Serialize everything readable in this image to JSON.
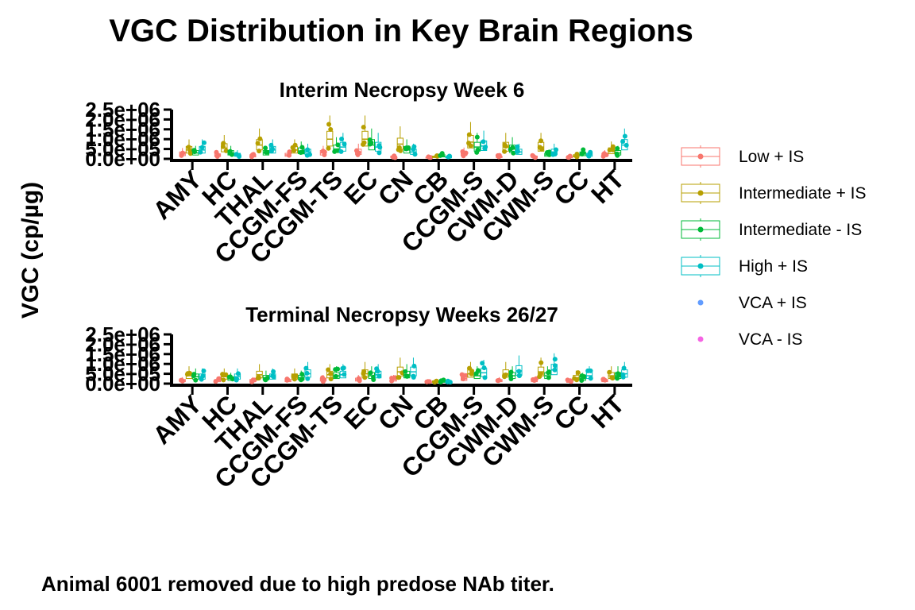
{
  "chart_data": {
    "type": "boxplot",
    "title": "VGC Distribution in Key Brain Regions",
    "ylabel": "VGC (cp/µg)",
    "caption": "Animal 6001 removed due to high predose NAb titer.",
    "ylim": [
      0,
      2500000
    ],
    "yticks": [
      "0.0e+00",
      "5.0e+05",
      "1.0e+06",
      "1.5e+06",
      "2.0e+06",
      "2.5e+06"
    ],
    "categories": [
      "AMY",
      "HC",
      "THAL",
      "CCGM-FS",
      "CCGM-TS",
      "EC",
      "CN",
      "CB",
      "CCGM-S",
      "CWM-D",
      "CWM-S",
      "CC",
      "HT"
    ],
    "legend": {
      "position": "right",
      "entries": [
        {
          "name": "Low + IS",
          "color": "#F8766D",
          "kind": "box"
        },
        {
          "name": "Intermediate + IS",
          "color": "#B79F00",
          "kind": "box"
        },
        {
          "name": "Intermediate - IS",
          "color": "#00BA38",
          "kind": "box"
        },
        {
          "name": "High + IS",
          "color": "#00BFC4",
          "kind": "box"
        },
        {
          "name": "VCA + IS",
          "color": "#619CFF",
          "kind": "point"
        },
        {
          "name": "VCA - IS",
          "color": "#F564E3",
          "kind": "point"
        }
      ]
    },
    "panels": [
      {
        "title": "Interim Necropsy Week 6",
        "series": [
          {
            "name": "Low + IS",
            "median": [
              250000,
              180000,
              150000,
              200000,
              300000,
              350000,
              100000,
              60000,
              260000,
              100000,
              100000,
              80000,
              200000
            ]
          },
          {
            "name": "Intermediate + IS",
            "median": [
              450000,
              550000,
              700000,
              450000,
              1000000,
              1000000,
              750000,
              100000,
              850000,
              600000,
              600000,
              150000,
              400000
            ]
          },
          {
            "name": "Intermediate - IS",
            "median": [
              300000,
              300000,
              300000,
              400000,
              500000,
              700000,
              450000,
              150000,
              600000,
              500000,
              200000,
              250000,
              300000
            ]
          },
          {
            "name": "High + IS",
            "median": [
              450000,
              200000,
              450000,
              350000,
              600000,
              600000,
              350000,
              80000,
              650000,
              350000,
              350000,
              200000,
              700000
            ]
          }
        ]
      },
      {
        "title": "Terminal Necropsy Weeks 26/27",
        "series": [
          {
            "name": "Low + IS",
            "median": [
              150000,
              150000,
              150000,
              150000,
              200000,
              200000,
              200000,
              60000,
              250000,
              150000,
              150000,
              100000,
              150000
            ]
          },
          {
            "name": "Intermediate + IS",
            "median": [
              400000,
              350000,
              450000,
              350000,
              450000,
              500000,
              600000,
              100000,
              500000,
              500000,
              600000,
              300000,
              400000
            ]
          },
          {
            "name": "Intermediate - IS",
            "median": [
              350000,
              250000,
              300000,
              300000,
              400000,
              400000,
              450000,
              100000,
              400000,
              400000,
              400000,
              250000,
              400000
            ]
          },
          {
            "name": "High + IS",
            "median": [
              350000,
              350000,
              350000,
              500000,
              450000,
              450000,
              600000,
              80000,
              550000,
              650000,
              700000,
              400000,
              500000
            ]
          }
        ]
      }
    ]
  }
}
